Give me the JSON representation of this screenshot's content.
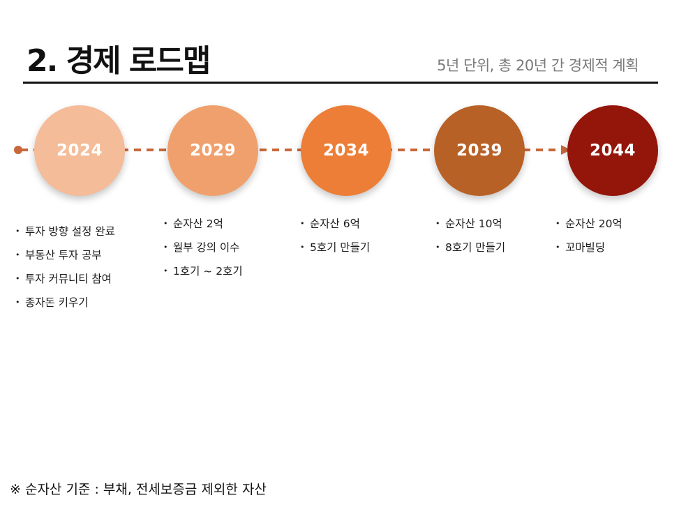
{
  "header": {
    "title": "2. 경제 로드맵",
    "subtitle": "5년 단위, 총 20년 간 경제적 계획"
  },
  "colors": {
    "line": "#C8673A",
    "milestones": [
      "#F4BC98",
      "#F0A06C",
      "#EC7E38",
      "#B86126",
      "#941509"
    ]
  },
  "milestones": [
    {
      "year": "2024",
      "items": [
        "투자 방향 설정 완료",
        "부동산 투자 공부",
        "투자 커뮤니티 참여",
        "종자돈 키우기"
      ]
    },
    {
      "year": "2029",
      "items": [
        "순자산 2억",
        "월부 강의 이수",
        "1호기 ~ 2호기"
      ]
    },
    {
      "year": "2034",
      "items": [
        "순자산 6억",
        "5호기 만들기"
      ]
    },
    {
      "year": "2039",
      "items": [
        "순자산 10억",
        "8호기 만들기"
      ]
    },
    {
      "year": "2044",
      "items": [
        "순자산 20억",
        "꼬마빌딩"
      ]
    }
  ],
  "footnote": "※ 순자산 기준 : 부채, 전세보증금 제외한 자산"
}
